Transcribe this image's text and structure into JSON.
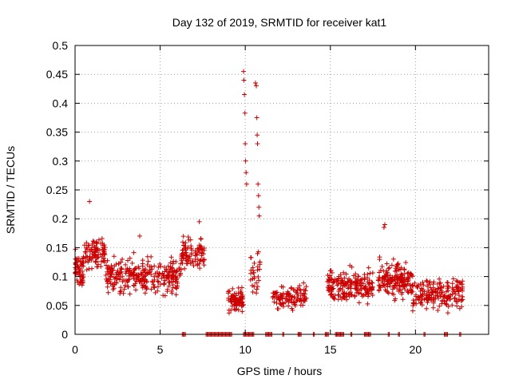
{
  "chart_data": {
    "type": "scatter",
    "title": "Day 132 of 2019, SRMTID for receiver kat1",
    "xlabel": "GPS time / hours",
    "ylabel": "SRMTID / TECUs",
    "xlim": [
      0,
      24.3
    ],
    "ylim": [
      0,
      0.5
    ],
    "x_ticks": [
      0,
      5,
      10,
      15,
      20
    ],
    "y_ticks": [
      0,
      0.05,
      0.1,
      0.15,
      0.2,
      0.25,
      0.3,
      0.35,
      0.4,
      0.45,
      0.5
    ],
    "grid": true,
    "marker": "+",
    "color": "#cc0000",
    "zero_band_ranges": [
      [
        6.3,
        6.5
      ],
      [
        7.7,
        9.2
      ],
      [
        9.9,
        10.5
      ],
      [
        11.2,
        11.6
      ],
      [
        12.2,
        12.3
      ],
      [
        13.1,
        13.3
      ],
      [
        14.0,
        14.1
      ],
      [
        14.7,
        14.9
      ],
      [
        15.3,
        15.8
      ],
      [
        16.2,
        16.3
      ],
      [
        17.0,
        17.4
      ],
      [
        18.4,
        18.5
      ],
      [
        19.0,
        19.1
      ],
      [
        20.5,
        20.6
      ],
      [
        21.7,
        21.9
      ],
      [
        22.6,
        22.7
      ]
    ],
    "spike_points": [
      [
        9.9,
        0.455
      ],
      [
        9.92,
        0.44
      ],
      [
        9.95,
        0.415
      ],
      [
        9.98,
        0.383
      ],
      [
        10.0,
        0.33
      ],
      [
        10.02,
        0.3
      ],
      [
        10.05,
        0.28
      ],
      [
        10.08,
        0.26
      ],
      [
        10.6,
        0.435
      ],
      [
        10.65,
        0.43
      ],
      [
        10.68,
        0.375
      ],
      [
        10.7,
        0.345
      ],
      [
        10.72,
        0.33
      ],
      [
        10.75,
        0.26
      ],
      [
        10.78,
        0.24
      ],
      [
        10.8,
        0.22
      ],
      [
        10.82,
        0.205
      ],
      [
        0.85,
        0.23
      ],
      [
        18.2,
        0.19
      ],
      [
        18.15,
        0.185
      ],
      [
        3.8,
        0.17
      ],
      [
        7.3,
        0.195
      ]
    ],
    "series": [
      {
        "name": "SRMTID",
        "segments": [
          {
            "x0": 0.0,
            "x1": 0.5,
            "base": 0.11,
            "spread": 0.045,
            "n": 60
          },
          {
            "x0": 0.5,
            "x1": 1.8,
            "base": 0.14,
            "spread": 0.04,
            "n": 90
          },
          {
            "x0": 1.8,
            "x1": 3.0,
            "base": 0.1,
            "spread": 0.04,
            "n": 80
          },
          {
            "x0": 3.0,
            "x1": 4.5,
            "base": 0.1,
            "spread": 0.045,
            "n": 100
          },
          {
            "x0": 4.5,
            "x1": 6.2,
            "base": 0.1,
            "spread": 0.04,
            "n": 110
          },
          {
            "x0": 6.2,
            "x1": 7.6,
            "base": 0.14,
            "spread": 0.04,
            "n": 90
          },
          {
            "x0": 9.0,
            "x1": 9.9,
            "base": 0.06,
            "spread": 0.03,
            "n": 80
          },
          {
            "x0": 10.3,
            "x1": 10.9,
            "base": 0.1,
            "spread": 0.06,
            "n": 30
          },
          {
            "x0": 11.6,
            "x1": 13.6,
            "base": 0.065,
            "spread": 0.03,
            "n": 110
          },
          {
            "x0": 14.8,
            "x1": 17.5,
            "base": 0.085,
            "spread": 0.04,
            "n": 200
          },
          {
            "x0": 17.8,
            "x1": 19.8,
            "base": 0.095,
            "spread": 0.045,
            "n": 170
          },
          {
            "x0": 19.8,
            "x1": 22.8,
            "base": 0.07,
            "spread": 0.035,
            "n": 190
          }
        ]
      }
    ]
  }
}
